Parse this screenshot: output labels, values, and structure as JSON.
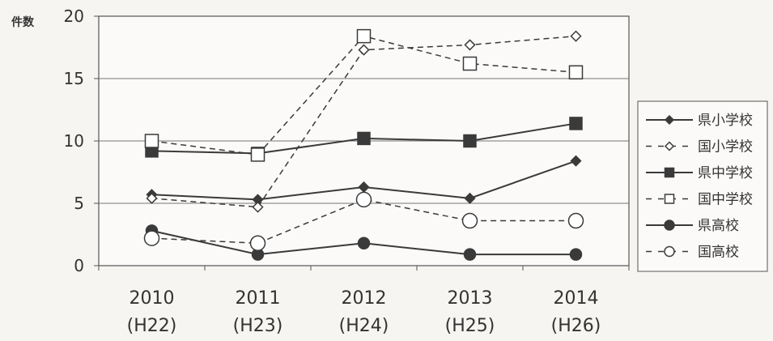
{
  "chart_data": {
    "type": "line",
    "ylabel": "件数",
    "ylim": [
      0,
      20
    ],
    "yticks": [
      0,
      5,
      10,
      15,
      20
    ],
    "grid": true,
    "legend_position": "right",
    "categories": [
      "2010\n(H22)",
      "2011\n(H23)",
      "2012\n(H24)",
      "2013\n(H25)",
      "2014\n(H26)"
    ],
    "category_lines": [
      [
        "2010",
        "(H22)"
      ],
      [
        "2011",
        "(H23)"
      ],
      [
        "2012",
        "(H24)"
      ],
      [
        "2013",
        "(H25)"
      ],
      [
        "2014",
        "(H26)"
      ]
    ],
    "series": [
      {
        "name": "県小学校",
        "marker": "diamond",
        "fill": "filled",
        "dash": "solid",
        "values": [
          5.7,
          5.3,
          6.3,
          5.4,
          8.4
        ]
      },
      {
        "name": "国小学校",
        "marker": "diamond",
        "fill": "open",
        "dash": "dashed",
        "values": [
          5.4,
          4.7,
          17.3,
          17.7,
          18.4
        ]
      },
      {
        "name": "県中学校",
        "marker": "square",
        "fill": "filled",
        "dash": "solid",
        "values": [
          9.2,
          9.0,
          10.2,
          10.0,
          11.4
        ]
      },
      {
        "name": "国中学校",
        "marker": "square",
        "fill": "open",
        "dash": "dashed",
        "values": [
          10.0,
          8.9,
          18.4,
          16.2,
          15.5
        ]
      },
      {
        "name": "県高校",
        "marker": "circle",
        "fill": "filled",
        "dash": "solid",
        "values": [
          2.8,
          0.9,
          1.8,
          0.9,
          0.9
        ]
      },
      {
        "name": "国高校",
        "marker": "circle",
        "fill": "open",
        "dash": "dashed",
        "values": [
          2.2,
          1.8,
          5.3,
          3.6,
          3.6
        ]
      }
    ]
  }
}
